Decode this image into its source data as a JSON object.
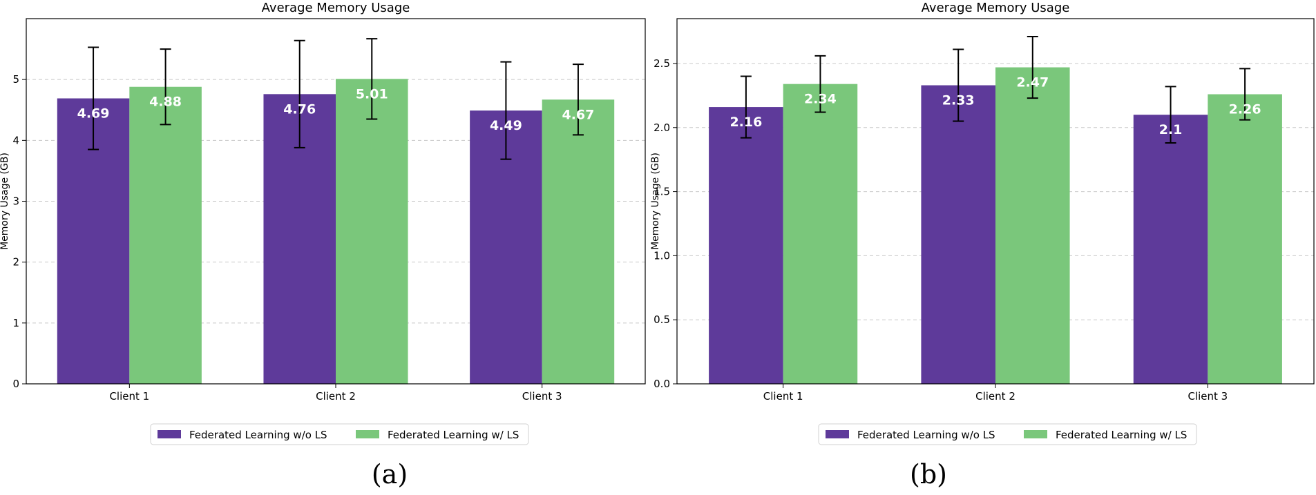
{
  "legend_items": [
    {
      "label": "Federated Learning w/o LS",
      "color": "#5e3a9a"
    },
    {
      "label": "Federated Learning w/ LS",
      "color": "#7ac77b"
    }
  ],
  "captions": {
    "a": "(a)",
    "b": "(b)"
  },
  "chart_data": [
    {
      "type": "bar",
      "title": "Average Memory Usage",
      "xlabel": "",
      "ylabel": "Memory Usage (GB)",
      "categories": [
        "Client 1",
        "Client 2",
        "Client 3"
      ],
      "ylim": [
        0,
        6
      ],
      "yticks": [
        0,
        1,
        2,
        3,
        4,
        5
      ],
      "ytick_labels": [
        "0",
        "1",
        "2",
        "3",
        "4",
        "5"
      ],
      "grid": "y-dashed",
      "legend": "bottom-center",
      "series": [
        {
          "name": "Federated Learning w/o LS",
          "color": "#5e3a9a",
          "values": [
            4.69,
            4.76,
            4.49
          ],
          "labels": [
            "4.69",
            "4.76",
            "4.49"
          ],
          "error": [
            0.84,
            0.88,
            0.8
          ]
        },
        {
          "name": "Federated Learning w/ LS",
          "color": "#7ac77b",
          "values": [
            4.88,
            5.01,
            4.67
          ],
          "labels": [
            "4.88",
            "5.01",
            "4.67"
          ],
          "error": [
            0.62,
            0.66,
            0.58
          ]
        }
      ]
    },
    {
      "type": "bar",
      "title": "Average Memory Usage",
      "xlabel": "",
      "ylabel": "Memory Usage (GB)",
      "categories": [
        "Client 1",
        "Client 2",
        "Client 3"
      ],
      "ylim": [
        0,
        2.85
      ],
      "yticks": [
        0,
        0.5,
        1,
        1.5,
        2,
        2.5
      ],
      "ytick_labels": [
        "0.0",
        "0.5",
        "1.0",
        "1.5",
        "2.0",
        "2.5"
      ],
      "grid": "y-dashed",
      "legend": "bottom-center",
      "series": [
        {
          "name": "Federated Learning w/o LS",
          "color": "#5e3a9a",
          "values": [
            2.16,
            2.33,
            2.1
          ],
          "labels": [
            "2.16",
            "2.33",
            "2.1"
          ],
          "error": [
            0.24,
            0.28,
            0.22
          ]
        },
        {
          "name": "Federated Learning w/ LS",
          "color": "#7ac77b",
          "values": [
            2.34,
            2.47,
            2.26
          ],
          "labels": [
            "2.34",
            "2.47",
            "2.26"
          ],
          "error": [
            0.22,
            0.24,
            0.2
          ]
        }
      ]
    }
  ]
}
